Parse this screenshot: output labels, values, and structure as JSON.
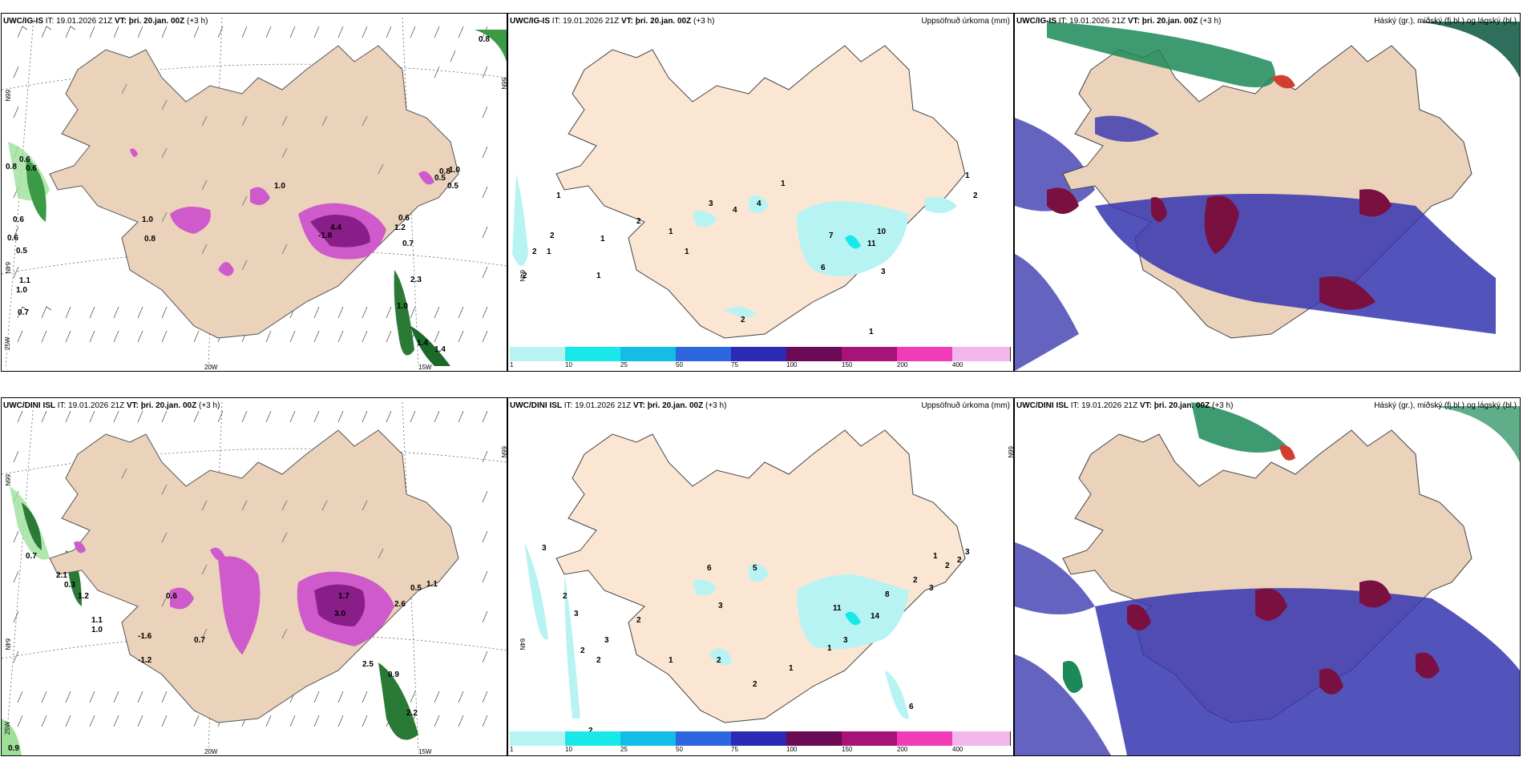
{
  "rows": [
    {
      "model": "UWC/IG-IS",
      "it_label": "IT:",
      "it_value": "19.01.2026 21Z",
      "vt_label": "VT:",
      "vt_value": "þri. 20.jan. 00Z",
      "offset": "(+3 h)",
      "labels_left": [
        "0.8",
        "0.6",
        "0.6",
        "0.8",
        "0.6",
        "0.6",
        "0.5",
        "1.1",
        "1.0",
        "0.7",
        "1.0",
        "0.8",
        "1.0",
        "-1.8",
        "4.4",
        "1.2",
        "0.6",
        "0.7",
        "0.5",
        "2.3",
        "1.0",
        "1.4",
        "1.4",
        "0.8",
        "0.5",
        "1.0"
      ],
      "labels_mid": [
        "1",
        "2",
        "1",
        "2",
        "4",
        "1",
        "1",
        "7",
        "6",
        "10",
        "11",
        "3",
        "1",
        "1",
        "2",
        "2",
        "1",
        "1",
        "2",
        "3",
        "4",
        "2",
        "1"
      ]
    },
    {
      "model": "UWC/DINI ISL",
      "it_label": "IT:",
      "it_value": "19.01.2026 21Z",
      "vt_label": "VT:",
      "vt_value": "þri. 20.jan. 00Z",
      "offset": "(+3 h)",
      "labels_left": [
        "0.7",
        "2.1",
        "0.3",
        "1.2",
        "1.1",
        "1.0",
        "-1.6",
        "-1.2",
        "0.6",
        "0.7",
        "1.7",
        "3.0",
        "2.6",
        "0.5",
        "1.1",
        "2.5",
        "0.9",
        "2.2",
        "0.9"
      ],
      "labels_mid": [
        "3",
        "2",
        "3",
        "2",
        "3",
        "1",
        "2",
        "5",
        "6",
        "3",
        "2",
        "2",
        "11",
        "14",
        "8",
        "2",
        "3",
        "6",
        "1",
        "2",
        "2",
        "3",
        "1",
        "2",
        "3",
        "2",
        "1"
      ]
    }
  ],
  "precip_title": "Uppsöfnuð úrkoma (mm)",
  "cloud_title": "Háský (gr.), miðský (fj.bl.) og lágský (bl.)",
  "colorbar": {
    "colors": [
      "#b8f3f3",
      "#19e8e8",
      "#13bde6",
      "#2e66e0",
      "#2a2ab5",
      "#6b0a55",
      "#a8137a",
      "#f03cb8",
      "#f2b6ea"
    ],
    "ticks": [
      "1",
      "10",
      "25",
      "50",
      "75",
      "100",
      "150",
      "200",
      "400"
    ]
  },
  "axes": {
    "lat": "66N",
    "lat2": "64N",
    "lat3": "63N",
    "lon_w": "25W",
    "lon_mid": "20W",
    "lon_e": "15W"
  }
}
